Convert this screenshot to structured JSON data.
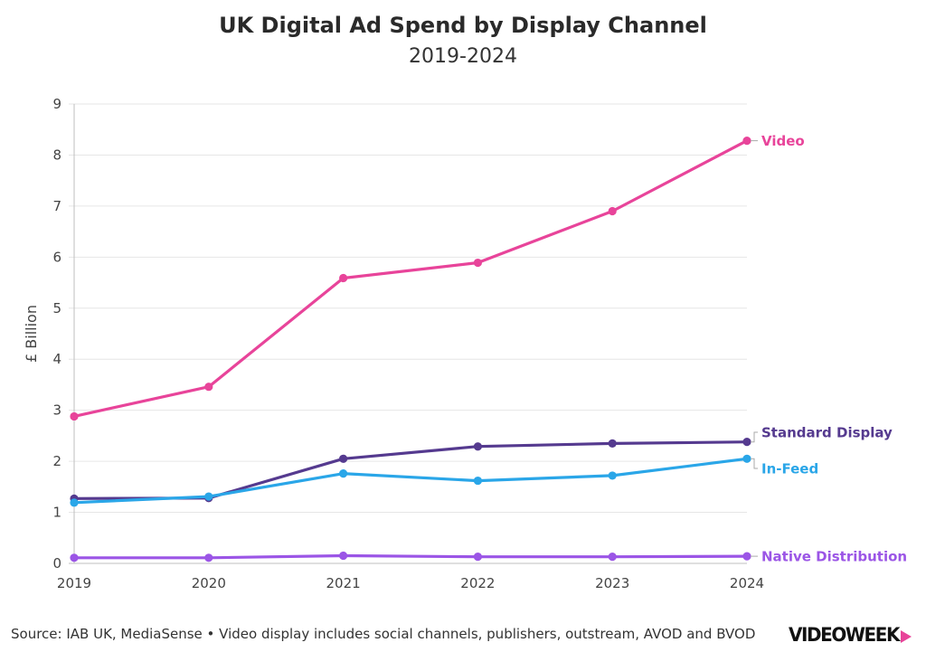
{
  "header": {
    "title": "UK Digital Ad Spend by Display Channel",
    "subtitle": "2019-2024"
  },
  "footer": {
    "source": "Source: IAB UK, MediaSense • Video display includes social channels, publishers, outstream, AVOD and BVOD",
    "logo_text": "VIDEOWEEK"
  },
  "chart_data": {
    "type": "line",
    "title": "UK Digital Ad Spend by Display Channel",
    "subtitle": "2019-2024",
    "xlabel": "",
    "ylabel": "£ Billion",
    "x": [
      "2019",
      "2020",
      "2021",
      "2022",
      "2023",
      "2024"
    ],
    "ylim": [
      0,
      9
    ],
    "yticks": [
      0,
      1,
      2,
      3,
      4,
      5,
      6,
      7,
      8,
      9
    ],
    "grid": true,
    "legend": "direct labels at line ends (right)",
    "series": [
      {
        "name": "Video",
        "color": "#e8449a",
        "values": [
          2.88,
          3.46,
          5.59,
          5.89,
          6.9,
          8.28
        ]
      },
      {
        "name": "Standard Display",
        "color": "#553a8f",
        "values": [
          1.27,
          1.28,
          2.05,
          2.29,
          2.35,
          2.38
        ]
      },
      {
        "name": "In-Feed",
        "color": "#2aa6e8",
        "values": [
          1.19,
          1.31,
          1.76,
          1.62,
          1.72,
          2.05
        ]
      },
      {
        "name": "Native Distribution",
        "color": "#9b55e6",
        "values": [
          0.11,
          0.11,
          0.15,
          0.13,
          0.13,
          0.14
        ]
      }
    ]
  }
}
